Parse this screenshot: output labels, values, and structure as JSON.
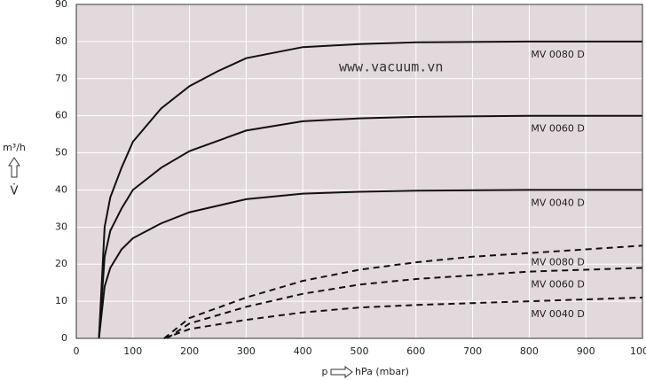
{
  "chart_data": {
    "type": "line",
    "watermark": "www.vacuum.vn",
    "ylabel_unit": "m³/h",
    "ylabel_symbol": "V̇",
    "xlabel_symbol": "p",
    "xlabel": "hPa (mbar)",
    "xlim": [
      0,
      1000
    ],
    "xticks": [
      0,
      100,
      200,
      300,
      400,
      500,
      600,
      700,
      800,
      900,
      1000
    ],
    "ylim": [
      0,
      90
    ],
    "yticks": [
      0,
      10,
      20,
      30,
      40,
      50,
      60,
      70,
      80,
      90
    ],
    "grid": true,
    "background": "#e2d9dd",
    "series": [
      {
        "name": "MV 0080 D",
        "color": "#111111",
        "line_style": "solid",
        "x": [
          40,
          50,
          60,
          80,
          100,
          150,
          200,
          250,
          300,
          400,
          500,
          600,
          800,
          1000
        ],
        "values": [
          0,
          30,
          38,
          46,
          53,
          62,
          68,
          72,
          75.5,
          78.5,
          79.3,
          79.8,
          80,
          80
        ]
      },
      {
        "name": "MV 0060 D",
        "color": "#111111",
        "line_style": "solid",
        "x": [
          40,
          50,
          60,
          80,
          100,
          150,
          200,
          300,
          400,
          500,
          600,
          800,
          1000
        ],
        "values": [
          0,
          22,
          29,
          35,
          40,
          46,
          50.5,
          56,
          58.5,
          59.3,
          59.7,
          60,
          60
        ]
      },
      {
        "name": "MV 0040 D",
        "color": "#111111",
        "line_style": "solid",
        "x": [
          40,
          50,
          60,
          80,
          100,
          150,
          200,
          300,
          400,
          500,
          600,
          800,
          1000
        ],
        "values": [
          0,
          14,
          19,
          24,
          27,
          31,
          34,
          37.5,
          39,
          39.5,
          39.8,
          40,
          40
        ]
      },
      {
        "name": "MV 0080 D",
        "color": "#111111",
        "line_style": "dashed",
        "x": [
          155,
          200,
          300,
          400,
          500,
          600,
          700,
          800,
          900,
          1000
        ],
        "values": [
          0,
          5.5,
          11,
          15.5,
          18.5,
          20.5,
          22,
          23,
          24,
          25
        ]
      },
      {
        "name": "MV 0060 D",
        "color": "#111111",
        "line_style": "dashed",
        "x": [
          160,
          200,
          300,
          400,
          500,
          600,
          700,
          800,
          900,
          1000
        ],
        "values": [
          0,
          4,
          8.5,
          12,
          14.5,
          16,
          17,
          18,
          18.5,
          19
        ]
      },
      {
        "name": "MV 0040 D",
        "color": "#111111",
        "line_style": "dashed",
        "x": [
          155,
          200,
          300,
          400,
          500,
          600,
          700,
          800,
          900,
          1000
        ],
        "values": [
          0,
          2.5,
          5,
          7,
          8.3,
          9,
          9.5,
          10,
          10.5,
          11
        ]
      }
    ]
  }
}
